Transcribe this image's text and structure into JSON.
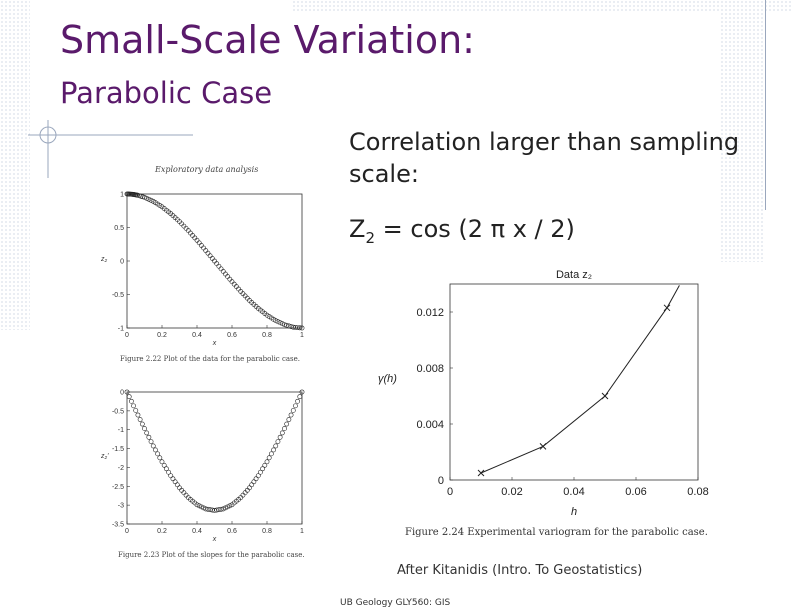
{
  "slide": {
    "title": "Small-Scale Variation:",
    "subtitle": "Parabolic Case",
    "bullet_line1": "Correlation larger than sampling",
    "bullet_line2": "scale:",
    "equation_prefix": "Z",
    "equation_sub": "2",
    "equation_rest": " = cos (2 π x / 2)",
    "credit": "After Kitanidis (Intro. To Geostatistics)",
    "footer": "UB Geology GLY560: GIS",
    "accent_color": "#5a1a6b"
  },
  "figure_top_left": {
    "heading": "Exploratory data analysis",
    "caption": "Figure 2.22 Plot of the data for the parabolic case.",
    "xlabel": "x",
    "ylabel": "z₂",
    "x_ticks": [
      "0",
      "0.2",
      "0.4",
      "0.6",
      "0.8",
      "1"
    ],
    "y_ticks": [
      "1",
      "0.5",
      "0",
      "-0.5",
      "-1"
    ]
  },
  "figure_bottom_left": {
    "caption": "Figure 2.23 Plot of the slopes for the parabolic case.",
    "xlabel": "x",
    "ylabel": "z₂'",
    "x_ticks": [
      "0",
      "0.2",
      "0.4",
      "0.6",
      "0.8",
      "1"
    ],
    "y_ticks": [
      "0",
      "-0.5",
      "-1",
      "-1.5",
      "-2",
      "-2.5",
      "-3",
      "-3.5"
    ]
  },
  "figure_right": {
    "heading": "Data z₂",
    "caption": "Figure 2.24 Experimental variogram for the parabolic case.",
    "xlabel": "h",
    "ylabel": "γ(h)",
    "x_ticks": [
      "0",
      "0.02",
      "0.04",
      "0.06",
      "0.08"
    ],
    "y_ticks": [
      "0",
      "0.004",
      "0.008",
      "0.012"
    ]
  },
  "chart_data": [
    {
      "type": "scatter",
      "x": [
        0.0,
        0.02,
        0.04,
        0.06,
        0.1,
        0.15,
        0.2,
        0.25,
        0.3,
        0.35,
        0.4,
        0.45,
        0.5,
        0.55,
        0.6,
        0.65,
        0.7,
        0.75,
        0.8,
        0.85,
        0.9,
        0.95,
        1.0
      ],
      "y": [
        1.0,
        0.998,
        0.992,
        0.982,
        0.951,
        0.891,
        0.809,
        0.707,
        0.588,
        0.454,
        0.309,
        0.156,
        0.0,
        -0.156,
        -0.309,
        -0.454,
        -0.588,
        -0.707,
        -0.809,
        -0.891,
        -0.951,
        -0.988,
        -1.0
      ],
      "xlim": [
        0,
        1
      ],
      "ylim": [
        -1,
        1
      ],
      "xlabel": "x",
      "ylabel": "z₂",
      "title": "Exploratory data analysis"
    },
    {
      "type": "scatter",
      "x": [
        0.0,
        0.05,
        0.1,
        0.15,
        0.2,
        0.25,
        0.3,
        0.35,
        0.4,
        0.45,
        0.5,
        0.55,
        0.6,
        0.65,
        0.7,
        0.75,
        0.8,
        0.85,
        0.9,
        0.95,
        1.0
      ],
      "y": [
        0.0,
        -0.49,
        -0.97,
        -1.43,
        -1.85,
        -2.22,
        -2.54,
        -2.8,
        -2.99,
        -3.1,
        -3.14,
        -3.1,
        -2.99,
        -2.8,
        -2.54,
        -2.22,
        -1.85,
        -1.43,
        -0.97,
        -0.49,
        0.0
      ],
      "xlim": [
        0,
        1
      ],
      "ylim": [
        -3.5,
        0
      ],
      "xlabel": "x",
      "ylabel": "z₂'"
    },
    {
      "type": "line",
      "x": [
        0.01,
        0.03,
        0.05,
        0.07
      ],
      "y": [
        0.0005,
        0.0024,
        0.006,
        0.0123
      ],
      "xlim": [
        0,
        0.08
      ],
      "ylim": [
        0,
        0.014
      ],
      "xlabel": "h",
      "ylabel": "γ(h)",
      "title": "Data z₂"
    }
  ]
}
